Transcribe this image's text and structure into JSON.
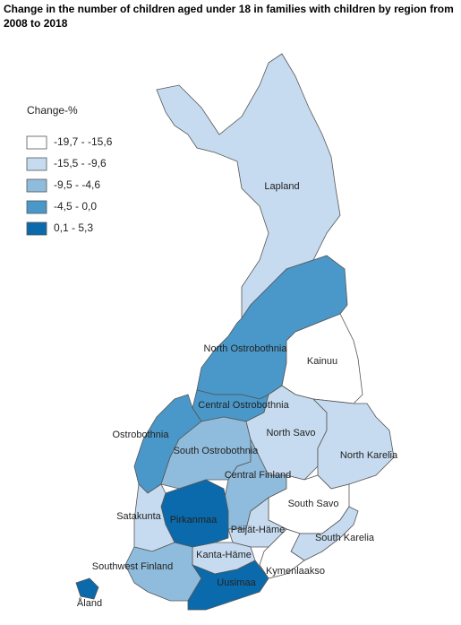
{
  "header": {
    "title": "Change in the number of children aged under 18 in families with children by region from 2008 to 2018"
  },
  "legend": {
    "title": "Change-%",
    "classes": [
      {
        "label": "-19,7 - -15,6",
        "color": "#ffffff"
      },
      {
        "label": "-15,5 - -9,6",
        "color": "#c6dbef"
      },
      {
        "label": "-9,5 - -4,6",
        "color": "#8fbcdc"
      },
      {
        "label": "-4,5 - 0,0",
        "color": "#4a98c9"
      },
      {
        "label": "0,1 - 5,3",
        "color": "#0b6aab"
      }
    ]
  },
  "regions": [
    {
      "name": "Lapland",
      "class": 1
    },
    {
      "name": "North Ostrobothnia",
      "class": 3
    },
    {
      "name": "Kainuu",
      "class": 0
    },
    {
      "name": "Central Ostrobothnia",
      "class": 3
    },
    {
      "name": "Ostrobothnia",
      "class": 3
    },
    {
      "name": "South Ostrobothnia",
      "class": 2
    },
    {
      "name": "North Savo",
      "class": 1
    },
    {
      "name": "North Karelia",
      "class": 1
    },
    {
      "name": "Central Finland",
      "class": 2
    },
    {
      "name": "South Savo",
      "class": 0
    },
    {
      "name": "South Karelia",
      "class": 1
    },
    {
      "name": "Kymenlaakso",
      "class": 0
    },
    {
      "name": "Päijät-Häme",
      "class": 1
    },
    {
      "name": "Kanta-Häme",
      "class": 1
    },
    {
      "name": "Pirkanmaa",
      "class": 4
    },
    {
      "name": "Satakunta",
      "class": 1
    },
    {
      "name": "Southwest Finland",
      "class": 2
    },
    {
      "name": "Uusimaa",
      "class": 4
    },
    {
      "name": "Åland",
      "class": 4
    }
  ]
}
